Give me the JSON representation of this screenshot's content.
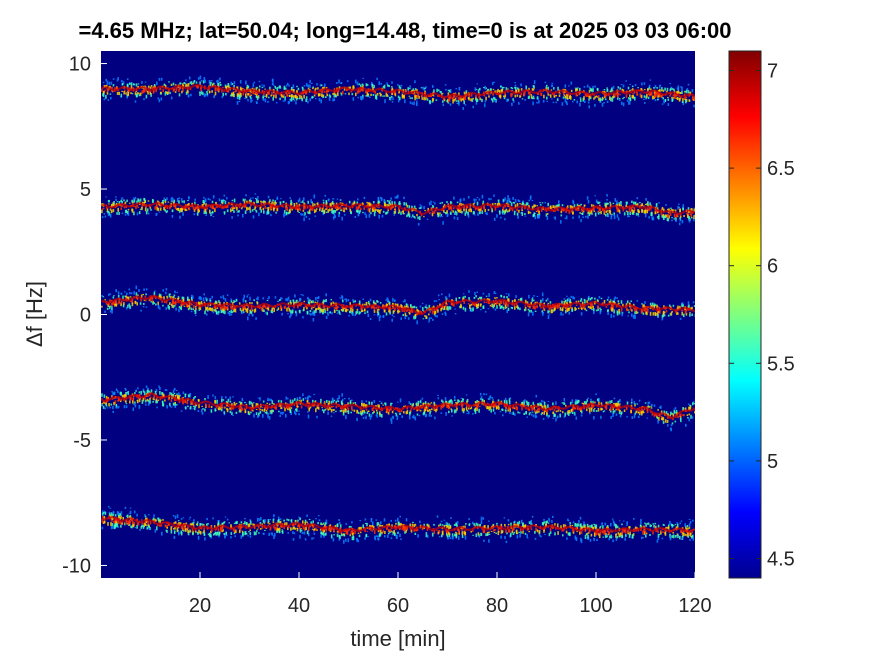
{
  "chart_data": {
    "type": "heatmap",
    "title": "=4.65 MHz;  lat=50.04; long=14.48, time=0 is at 2025 03 03 06:00",
    "xlabel": "time [min]",
    "ylabel": "Δf [Hz]",
    "xlim": [
      0,
      120
    ],
    "ylim": [
      -10.5,
      10.5
    ],
    "xticks": [
      20,
      40,
      60,
      80,
      100,
      120
    ],
    "yticks": [
      10,
      5,
      0,
      -5,
      -10
    ],
    "xtick_labels": [
      "20",
      "40",
      "60",
      "80",
      "100",
      "120"
    ],
    "ytick_labels": [
      "10",
      "5",
      "0",
      "-5",
      "-10"
    ],
    "colorbar": {
      "range": [
        4.4,
        7.1
      ],
      "ticks": [
        7,
        6.5,
        6,
        5.5,
        5,
        4.5
      ],
      "tick_labels": [
        "7",
        "6.5",
        "6",
        "5.5",
        "5",
        "4.5"
      ],
      "colormap": "jet"
    },
    "background_color": "#000080",
    "traces": [
      {
        "points": [
          [
            0,
            9.0
          ],
          [
            10,
            9.0
          ],
          [
            20,
            9.1
          ],
          [
            30,
            8.9
          ],
          [
            40,
            8.85
          ],
          [
            50,
            9.0
          ],
          [
            60,
            8.9
          ],
          [
            70,
            8.7
          ],
          [
            80,
            8.85
          ],
          [
            90,
            8.9
          ],
          [
            100,
            8.8
          ],
          [
            110,
            8.9
          ],
          [
            120,
            8.7
          ]
        ]
      },
      {
        "points": [
          [
            0,
            4.3
          ],
          [
            10,
            4.4
          ],
          [
            20,
            4.3
          ],
          [
            30,
            4.4
          ],
          [
            40,
            4.3
          ],
          [
            50,
            4.35
          ],
          [
            60,
            4.3
          ],
          [
            65,
            4.05
          ],
          [
            70,
            4.3
          ],
          [
            80,
            4.35
          ],
          [
            90,
            4.2
          ],
          [
            100,
            4.25
          ],
          [
            110,
            4.3
          ],
          [
            115,
            4.05
          ],
          [
            120,
            4.1
          ]
        ]
      },
      {
        "points": [
          [
            0,
            0.5
          ],
          [
            10,
            0.7
          ],
          [
            20,
            0.4
          ],
          [
            30,
            0.35
          ],
          [
            40,
            0.4
          ],
          [
            50,
            0.35
          ],
          [
            60,
            0.3
          ],
          [
            65,
            0.05
          ],
          [
            70,
            0.5
          ],
          [
            80,
            0.55
          ],
          [
            90,
            0.35
          ],
          [
            100,
            0.45
          ],
          [
            110,
            0.25
          ],
          [
            120,
            0.2
          ]
        ]
      },
      {
        "points": [
          [
            0,
            -3.4
          ],
          [
            10,
            -3.2
          ],
          [
            20,
            -3.5
          ],
          [
            30,
            -3.7
          ],
          [
            40,
            -3.55
          ],
          [
            50,
            -3.65
          ],
          [
            60,
            -3.75
          ],
          [
            70,
            -3.6
          ],
          [
            80,
            -3.55
          ],
          [
            90,
            -3.75
          ],
          [
            100,
            -3.6
          ],
          [
            110,
            -3.75
          ],
          [
            115,
            -4.1
          ],
          [
            120,
            -3.7
          ]
        ]
      },
      {
        "points": [
          [
            0,
            -8.1
          ],
          [
            10,
            -8.25
          ],
          [
            20,
            -8.5
          ],
          [
            30,
            -8.45
          ],
          [
            40,
            -8.35
          ],
          [
            50,
            -8.6
          ],
          [
            60,
            -8.45
          ],
          [
            70,
            -8.55
          ],
          [
            80,
            -8.5
          ],
          [
            90,
            -8.45
          ],
          [
            100,
            -8.6
          ],
          [
            110,
            -8.55
          ],
          [
            120,
            -8.6
          ]
        ]
      }
    ]
  }
}
